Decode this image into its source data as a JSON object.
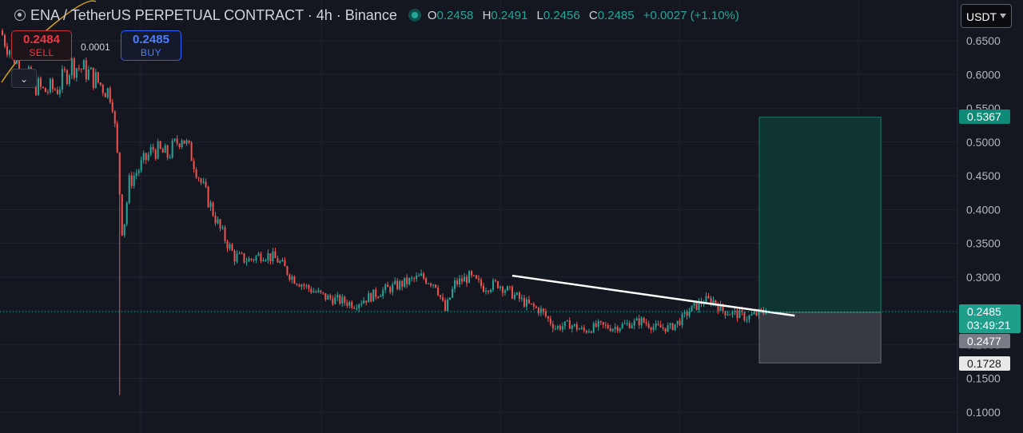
{
  "header": {
    "title": "ENA / TetherUS PERPETUAL CONTRACT · 4h · Binance",
    "ohlc": {
      "o_label": "O",
      "o_value": "0.2458",
      "h_label": "H",
      "h_value": "0.2491",
      "l_label": "L",
      "l_value": "0.2456",
      "c_label": "C",
      "c_value": "0.2485",
      "change": "+0.0027 (+1.10%)"
    }
  },
  "trade": {
    "sell_price": "0.2484",
    "sell_label": "SELL",
    "buy_price": "0.2485",
    "buy_label": "BUY",
    "spread": "0.0001"
  },
  "currency_selector": "USDT",
  "price_tags": {
    "take_profit": "0.5367",
    "last_price": "0.2485",
    "countdown": "03:49:21",
    "entry": "0.2477",
    "stop_loss": "0.1728"
  },
  "icons": {
    "logo": "exchange-logo-icon",
    "status": "market-status-dot-icon",
    "collapse": "chevron-down-icon",
    "dropdown": "dropdown-caret-icon"
  },
  "colors": {
    "background": "#141720",
    "up": "#26a69a",
    "down": "#f05350",
    "sell": "#f23645",
    "buy": "#2962ff",
    "trendline": "#ffffff",
    "profit_zone": "#0d3b33",
    "loss_zone": "#3a3d45"
  },
  "chart_data": {
    "type": "candlestick",
    "symbol": "ENA/USDT",
    "interval": "4h",
    "exchange": "Binance",
    "y_ticks": [
      "0.6500",
      "0.6000",
      "0.5500",
      "0.5000",
      "0.4500",
      "0.4000",
      "0.3500",
      "0.3000",
      "0.2500",
      "0.2000",
      "0.1500",
      "0.1000"
    ],
    "ylim": [
      0.07,
      0.67
    ],
    "grid": true,
    "price_path": [
      [
        0.0,
        0.665
      ],
      [
        0.025,
        0.6
      ],
      [
        0.045,
        0.575
      ],
      [
        0.06,
        0.58
      ],
      [
        0.075,
        0.615
      ],
      [
        0.09,
        0.605
      ],
      [
        0.105,
        0.585
      ],
      [
        0.117,
        0.57
      ],
      [
        0.123,
        0.47
      ],
      [
        0.128,
        0.36
      ],
      [
        0.135,
        0.44
      ],
      [
        0.145,
        0.46
      ],
      [
        0.16,
        0.49
      ],
      [
        0.175,
        0.48
      ],
      [
        0.19,
        0.51
      ],
      [
        0.2,
        0.48
      ],
      [
        0.21,
        0.44
      ],
      [
        0.22,
        0.405
      ],
      [
        0.23,
        0.37
      ],
      [
        0.245,
        0.33
      ],
      [
        0.26,
        0.325
      ],
      [
        0.275,
        0.335
      ],
      [
        0.29,
        0.325
      ],
      [
        0.305,
        0.3
      ],
      [
        0.32,
        0.285
      ],
      [
        0.34,
        0.27
      ],
      [
        0.355,
        0.265
      ],
      [
        0.37,
        0.26
      ],
      [
        0.385,
        0.27
      ],
      [
        0.4,
        0.28
      ],
      [
        0.42,
        0.29
      ],
      [
        0.44,
        0.3
      ],
      [
        0.455,
        0.29
      ],
      [
        0.465,
        0.25
      ],
      [
        0.475,
        0.29
      ],
      [
        0.49,
        0.3
      ],
      [
        0.505,
        0.285
      ],
      [
        0.52,
        0.29
      ],
      [
        0.535,
        0.275
      ],
      [
        0.55,
        0.26
      ],
      [
        0.565,
        0.25
      ],
      [
        0.58,
        0.225
      ],
      [
        0.595,
        0.23
      ],
      [
        0.61,
        0.22
      ],
      [
        0.625,
        0.228
      ],
      [
        0.64,
        0.225
      ],
      [
        0.655,
        0.23
      ],
      [
        0.67,
        0.235
      ],
      [
        0.685,
        0.225
      ],
      [
        0.7,
        0.225
      ],
      [
        0.71,
        0.235
      ],
      [
        0.72,
        0.25
      ],
      [
        0.735,
        0.265
      ],
      [
        0.745,
        0.265
      ],
      [
        0.755,
        0.25
      ],
      [
        0.77,
        0.245
      ],
      [
        0.78,
        0.24
      ],
      [
        0.79,
        0.245
      ],
      [
        0.8,
        0.2485
      ]
    ],
    "wick_spike": {
      "position": 0.124,
      "low": 0.125
    },
    "trendline": {
      "from": [
        0.535,
        0.302
      ],
      "to": [
        0.83,
        0.2427
      ]
    },
    "position": {
      "type": "long",
      "entry": 0.2477,
      "take_profit": 0.5367,
      "stop_loss": 0.1728,
      "start": 0.793,
      "end": 0.92
    },
    "last_price": 0.2485
  }
}
